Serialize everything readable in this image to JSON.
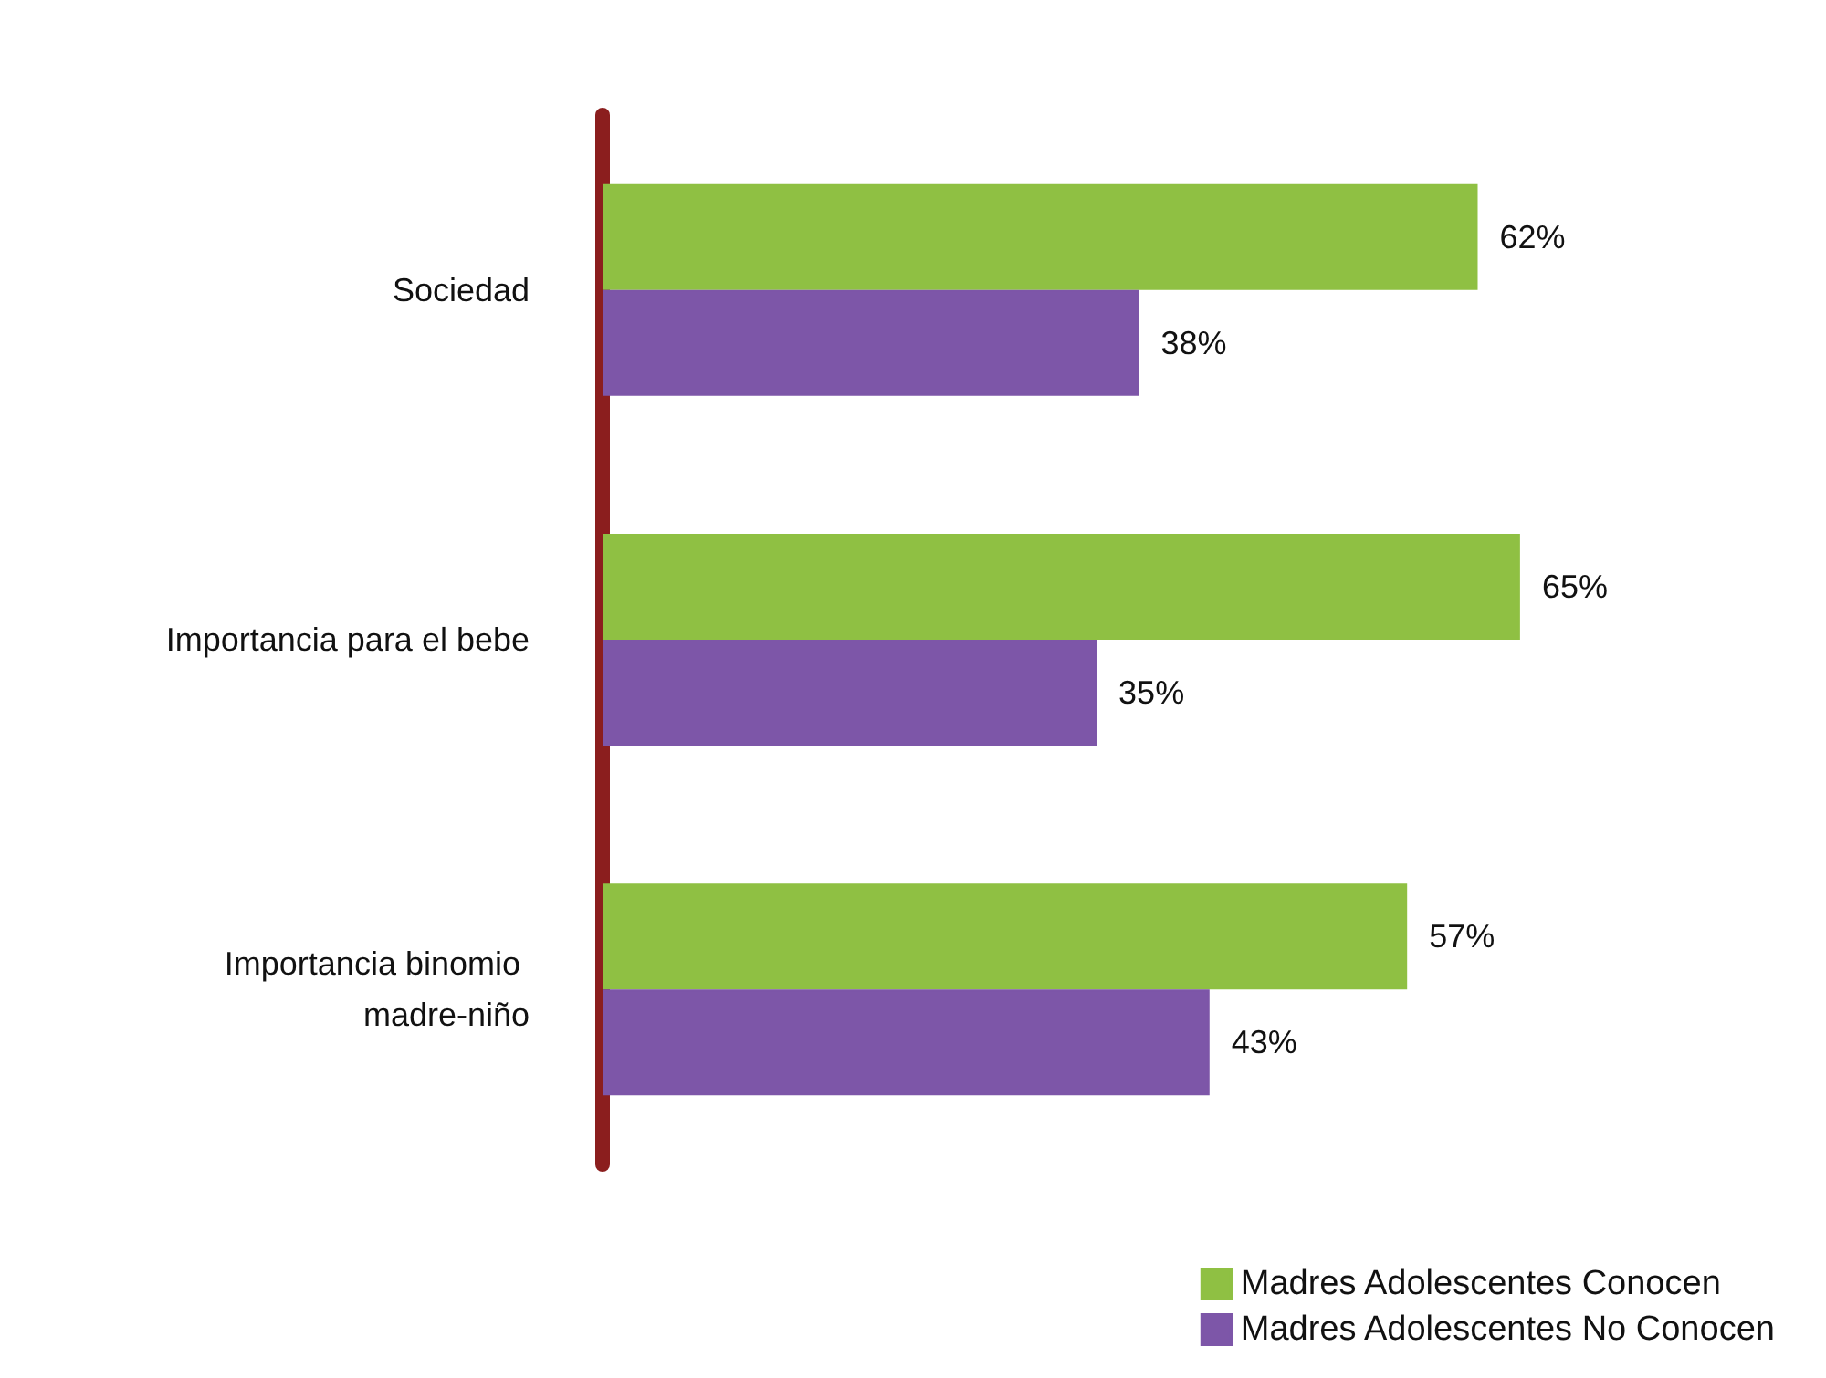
{
  "chart_data": {
    "type": "bar",
    "orientation": "horizontal",
    "categories": [
      "Sociedad",
      "Importancia para el bebe",
      "Importancia binomio madre-niño"
    ],
    "series": [
      {
        "name": "Madres Adolescentes Conocen",
        "color": "#8fc043",
        "values": [
          62,
          65,
          57
        ],
        "value_labels": [
          "62%",
          "65%",
          "57%"
        ]
      },
      {
        "name": "Madres Adolescentes No Conocen",
        "color": "#7d56a8",
        "values": [
          38,
          35,
          43
        ],
        "value_labels": [
          "38%",
          "35%",
          "43%"
        ]
      }
    ],
    "legend": "bottom right"
  }
}
